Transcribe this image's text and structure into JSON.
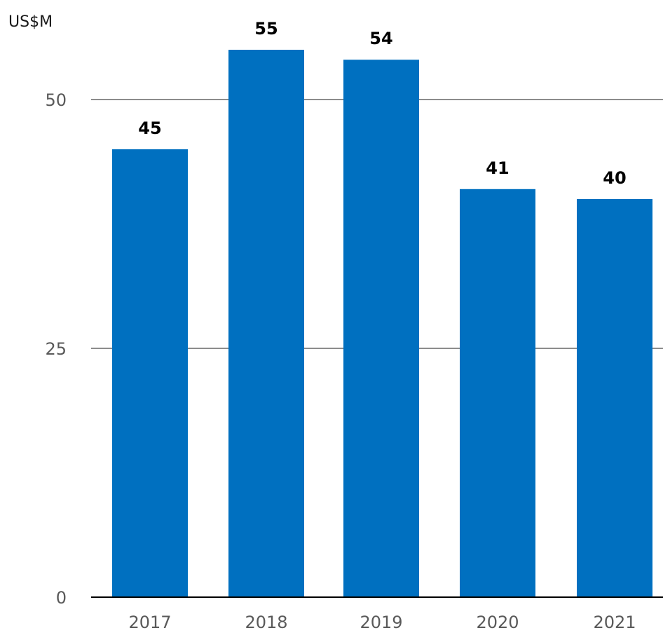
{
  "chart_data": {
    "type": "bar",
    "unit_label": "US$M",
    "categories": [
      "2017",
      "2018",
      "2019",
      "2020",
      "2021"
    ],
    "values": [
      45,
      55,
      54,
      41,
      40
    ],
    "data_labels": [
      "45",
      "55",
      "54",
      "41",
      "40"
    ],
    "yticks": [
      0,
      25,
      50
    ],
    "ytick_labels": [
      "0",
      "25",
      "50"
    ],
    "ylim": [
      0,
      50
    ],
    "grid": true,
    "bar_color": "#0070c0",
    "grid_color": "#8c8c8c",
    "axis_color": "#000000"
  }
}
